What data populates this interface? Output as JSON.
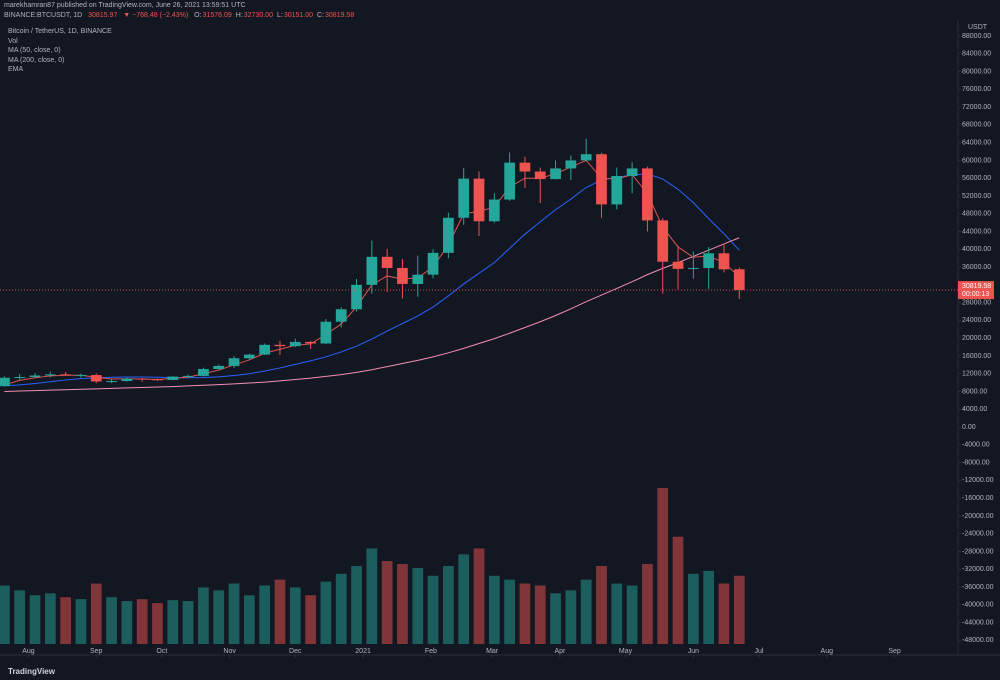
{
  "header": {
    "published": "marekhamran87 published on TradingView.com, June 26, 2021 13:59:51 UTC",
    "symbol": "BINANCE:BTCUSDT, 1D",
    "last": "30815.97",
    "change": "▼ −768.48 (−2.43%)",
    "ohlc": [
      {
        "label": "O:",
        "value": "31576.09"
      },
      {
        "label": "H:",
        "value": "32730.00"
      },
      {
        "label": "L:",
        "value": "30151.00"
      },
      {
        "label": "C:",
        "value": "30819.58"
      }
    ]
  },
  "brand": "TradingView",
  "chart_data": {
    "type": "candlestick",
    "title": "Bitcoin / TetherUS, 1D, BINANCE",
    "up_color": "#26a69a",
    "down_color": "#ef5350",
    "grid": false,
    "x": [
      0,
      7,
      14,
      21,
      28,
      35,
      42,
      49,
      56,
      63,
      70,
      77,
      84,
      91,
      98,
      105,
      112,
      119,
      126,
      133,
      140,
      147,
      154,
      161,
      168,
      175,
      182,
      189,
      196,
      203,
      210,
      217,
      224,
      231,
      238,
      245,
      252,
      259,
      266,
      273,
      280,
      287,
      294,
      301,
      308,
      315,
      322,
      329,
      336
    ],
    "open": [
      9200,
      11100,
      11250,
      11600,
      11850,
      11650,
      11700,
      10250,
      10350,
      10900,
      10750,
      10600,
      11350,
      11500,
      13050,
      13750,
      15480,
      16300,
      18500,
      18200,
      19150,
      18800,
      23700,
      26500,
      32000,
      38300,
      35800,
      32200,
      34300,
      39200,
      47100,
      55900,
      46300,
      51200,
      59500,
      57500,
      55800,
      58200,
      60000,
      61400,
      50100,
      56500,
      58200,
      46500,
      37200,
      35600,
      35800,
      39100,
      35500
    ],
    "high": [
      11400,
      11900,
      12100,
      12450,
      12400,
      12000,
      12100,
      10800,
      11100,
      11000,
      10950,
      11450,
      11750,
      13350,
      14100,
      15950,
      16500,
      18800,
      19400,
      19900,
      19400,
      24300,
      27000,
      33300,
      41950,
      40100,
      37800,
      38600,
      40000,
      48200,
      58300,
      57500,
      52600,
      61800,
      60800,
      58400,
      60000,
      61100,
      64900,
      61700,
      58400,
      59600,
      58600,
      47000,
      40800,
      39500,
      40500,
      41300,
      35900
    ],
    "low": [
      9100,
      10600,
      11100,
      11200,
      11500,
      11100,
      9850,
      9900,
      10250,
      10150,
      10400,
      10550,
      11200,
      11400,
      12950,
      13300,
      15100,
      16200,
      16200,
      18000,
      17600,
      18700,
      22400,
      26000,
      30000,
      30400,
      28900,
      29300,
      33500,
      38000,
      45500,
      43000,
      46000,
      50900,
      53800,
      50400,
      55700,
      55600,
      59800,
      47100,
      49000,
      52600,
      44000,
      30000,
      31000,
      33400,
      31100,
      34800,
      28800
    ],
    "close": [
      11100,
      11250,
      11600,
      11850,
      11650,
      11700,
      10250,
      10350,
      10900,
      10750,
      10600,
      11350,
      11500,
      13050,
      13750,
      15480,
      16300,
      18500,
      18200,
      19150,
      18800,
      23700,
      26500,
      32000,
      38300,
      35800,
      32200,
      34300,
      39200,
      47100,
      55900,
      46300,
      51200,
      59500,
      57500,
      55800,
      58200,
      60000,
      61400,
      50100,
      56500,
      58200,
      46500,
      37200,
      35600,
      35800,
      39100,
      35500,
      30820
    ],
    "volume": {
      "name": "Vol",
      "values": [
        60,
        55,
        50,
        52,
        48,
        46,
        62,
        48,
        44,
        46,
        42,
        45,
        44,
        58,
        55,
        62,
        50,
        60,
        66,
        58,
        50,
        64,
        72,
        80,
        98,
        85,
        82,
        78,
        70,
        80,
        92,
        98,
        70,
        66,
        62,
        60,
        52,
        55,
        66,
        80,
        62,
        60,
        82,
        160,
        110,
        72,
        75,
        62,
        70
      ]
    },
    "series": [
      {
        "name": "MA (50, close, 0)",
        "color": "#2962ff",
        "values": [
          9300,
          9500,
          9800,
          10200,
          10600,
          10900,
          11100,
          11200,
          11250,
          11250,
          11200,
          11150,
          11100,
          11150,
          11300,
          11600,
          12000,
          12600,
          13300,
          14100,
          14900,
          15800,
          16900,
          18200,
          19800,
          21600,
          23300,
          25000,
          27000,
          29500,
          32200,
          34600,
          37000,
          40200,
          43400,
          46200,
          48900,
          51300,
          53900,
          55600,
          56200,
          56700,
          57000,
          55800,
          53500,
          50500,
          46900,
          43500,
          39800
        ]
      },
      {
        "name": "MA (200, close, 0)",
        "color": "#f48fb1",
        "values": [
          8000,
          8100,
          8200,
          8300,
          8400,
          8500,
          8600,
          8700,
          8800,
          8900,
          9000,
          9100,
          9250,
          9400,
          9550,
          9700,
          9900,
          10100,
          10400,
          10700,
          11000,
          11400,
          11800,
          12300,
          12900,
          13600,
          14300,
          15000,
          15800,
          16700,
          17700,
          18800,
          19900,
          21100,
          22400,
          23700,
          25100,
          26600,
          28200,
          29700,
          31200,
          32700,
          34300,
          35700,
          37000,
          38400,
          39800,
          41200,
          42600
        ]
      },
      {
        "name": "EMA",
        "color": "#e0544f",
        "values": [
          9500,
          10500,
          11100,
          11500,
          11650,
          11650,
          11200,
          10800,
          10850,
          10800,
          10700,
          10950,
          11200,
          12000,
          12800,
          14000,
          15100,
          16600,
          17500,
          18400,
          18700,
          20800,
          23200,
          27000,
          32000,
          34000,
          33300,
          33600,
          36000,
          41000,
          48000,
          48500,
          49500,
          54000,
          56000,
          56000,
          57000,
          58500,
          60000,
          56000,
          55800,
          56800,
          52500,
          45000,
          40500,
          38200,
          38500,
          37000,
          33800
        ]
      }
    ],
    "xlim": [
      -2,
      436
    ],
    "xticks": [
      {
        "value": 11,
        "label": "Aug"
      },
      {
        "value": 42,
        "label": "Sep"
      },
      {
        "value": 72,
        "label": "Oct"
      },
      {
        "value": 103,
        "label": "Nov"
      },
      {
        "value": 133,
        "label": "Dec"
      },
      {
        "value": 164,
        "label": "2021"
      },
      {
        "value": 195,
        "label": "Feb"
      },
      {
        "value": 223,
        "label": "Mar"
      },
      {
        "value": 254,
        "label": "Apr"
      },
      {
        "value": 284,
        "label": "May"
      },
      {
        "value": 315,
        "label": "Jun"
      },
      {
        "value": 345,
        "label": "Jul"
      },
      {
        "value": 376,
        "label": "Aug"
      },
      {
        "value": 407,
        "label": "Sep"
      }
    ],
    "ylim": [
      -49500,
      91600
    ],
    "y_unit": "USDT",
    "yticks": [
      {
        "value": 88000,
        "label": "88000.00"
      },
      {
        "value": 84000,
        "label": "84000.00"
      },
      {
        "value": 80000,
        "label": "80000.00"
      },
      {
        "value": 76000,
        "label": "76000.00"
      },
      {
        "value": 72000,
        "label": "72000.00"
      },
      {
        "value": 68000,
        "label": "68000.00"
      },
      {
        "value": 64000,
        "label": "64000.00"
      },
      {
        "value": 60000,
        "label": "60000.00"
      },
      {
        "value": 56000,
        "label": "56000.00"
      },
      {
        "value": 52000,
        "label": "52000.00"
      },
      {
        "value": 48000,
        "label": "48000.00"
      },
      {
        "value": 44000,
        "label": "44000.00"
      },
      {
        "value": 40000,
        "label": "40000.00"
      },
      {
        "value": 36000,
        "label": "36000.00"
      },
      {
        "value": 32000,
        "label": "32000.00"
      },
      {
        "value": 28000,
        "label": "28000.00"
      },
      {
        "value": 24000,
        "label": "24000.00"
      },
      {
        "value": 20000,
        "label": "20000.00"
      },
      {
        "value": 16000,
        "label": "16000.00"
      },
      {
        "value": 12000,
        "label": "12000.00"
      },
      {
        "value": 8000,
        "label": "8000.00"
      },
      {
        "value": 4000,
        "label": "4000.00"
      },
      {
        "value": 0,
        "label": "0.00"
      },
      {
        "value": -4000,
        "label": "-4000.00"
      },
      {
        "value": -8000,
        "label": "-8000.00"
      },
      {
        "value": -12000,
        "label": "-12000.00"
      },
      {
        "value": -16000,
        "label": "-16000.00"
      },
      {
        "value": -20000,
        "label": "-20000.00"
      },
      {
        "value": -24000,
        "label": "-24000.00"
      },
      {
        "value": -28000,
        "label": "-28000.00"
      },
      {
        "value": -32000,
        "label": "-32000.00"
      },
      {
        "value": -36000,
        "label": "-36000.00"
      },
      {
        "value": -40000,
        "label": "-40000.00"
      },
      {
        "value": -44000,
        "label": "-44000.00"
      },
      {
        "value": -48000,
        "label": "-48000.00"
      }
    ],
    "last_price": {
      "value": 30819.58,
      "label": "30819.58"
    },
    "countdown": "00:00:13"
  }
}
